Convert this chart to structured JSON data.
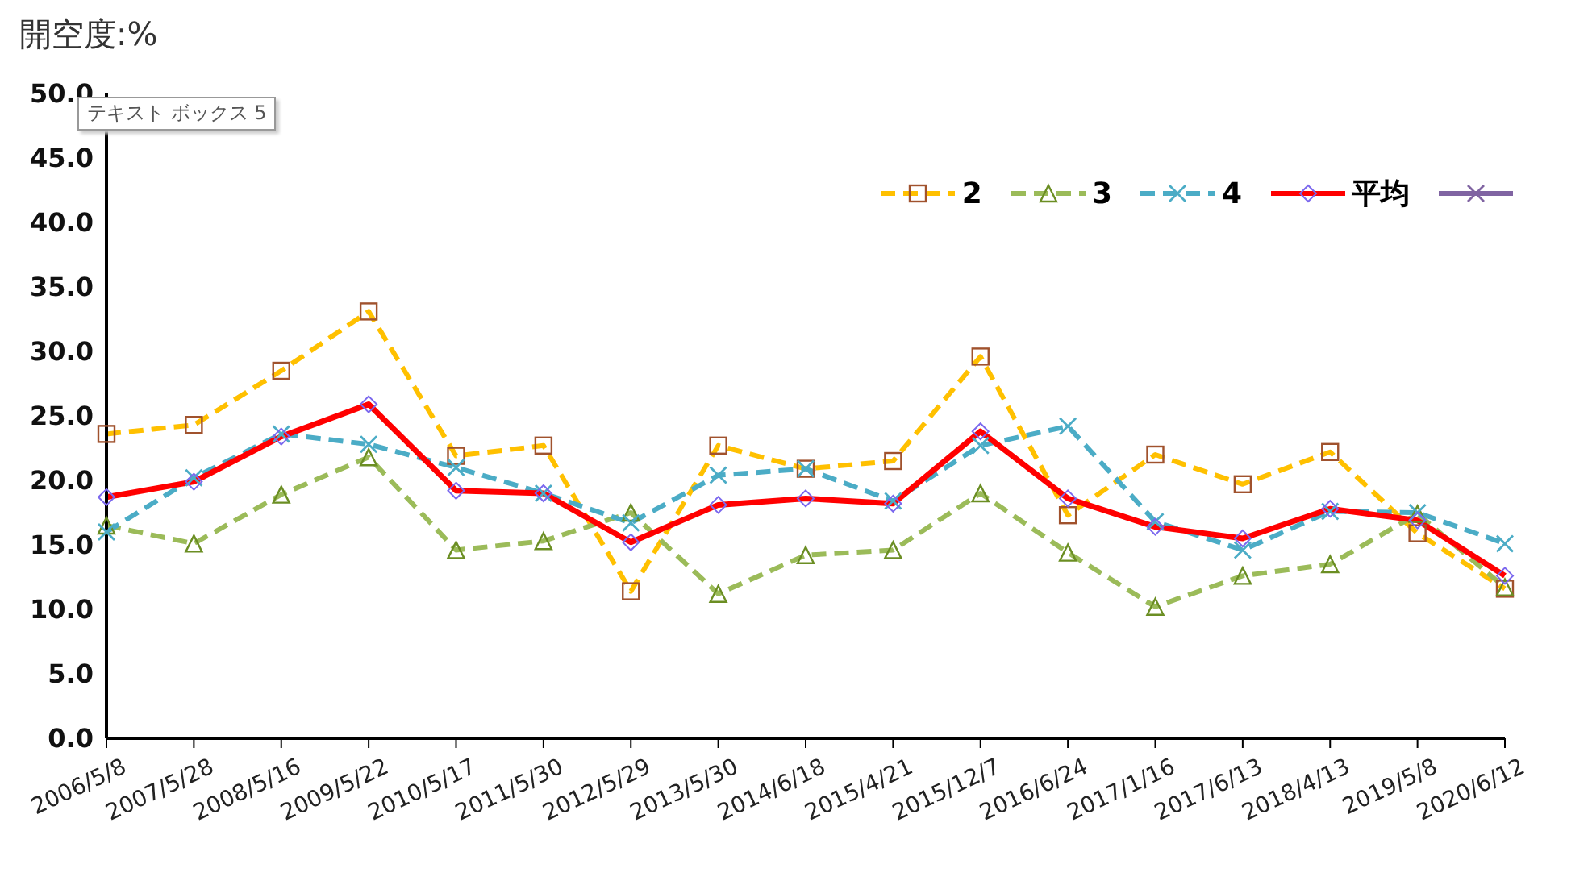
{
  "chart_data": {
    "type": "line",
    "ylabel": "開空度:%",
    "annotations": [
      "テキスト ボックス 5"
    ],
    "categories": [
      "2006/5/8",
      "2007/5/28",
      "2008/5/16",
      "2009/5/22",
      "2010/5/17",
      "2011/5/30",
      "2012/5/29",
      "2013/5/30",
      "2014/6/18",
      "2015/4/21",
      "2015/12/7",
      "2016/6/24",
      "2017/1/16",
      "2017/6/13",
      "2018/4/13",
      "2019/5/8",
      "2020/6/12"
    ],
    "series": [
      {
        "name": "2",
        "color": "#ffc000",
        "marker": "square",
        "line_style": "dashed",
        "values": [
          23.6,
          24.3,
          28.5,
          33.1,
          21.9,
          22.7,
          11.4,
          22.7,
          20.9,
          21.5,
          29.6,
          17.3,
          22.0,
          19.7,
          22.2,
          15.9,
          11.6
        ]
      },
      {
        "name": "3",
        "color": "#9bbb59",
        "marker": "triangle",
        "line_style": "dashed",
        "values": [
          16.5,
          15.1,
          18.9,
          21.8,
          14.6,
          15.3,
          17.5,
          11.2,
          14.2,
          14.6,
          19.0,
          14.4,
          10.2,
          12.6,
          13.5,
          17.4,
          11.7
        ]
      },
      {
        "name": "4",
        "color": "#4bacc6",
        "marker": "cross",
        "line_style": "dashed",
        "values": [
          16.0,
          20.2,
          23.6,
          22.8,
          21.0,
          19.0,
          16.7,
          20.4,
          20.9,
          18.4,
          22.7,
          24.2,
          16.8,
          14.6,
          17.6,
          17.5,
          15.1
        ]
      },
      {
        "name": "平均",
        "color": "#ff0000",
        "marker": "diamond",
        "line_style": "solid",
        "values": [
          18.7,
          19.9,
          23.4,
          25.9,
          19.2,
          19.0,
          15.2,
          18.1,
          18.6,
          18.2,
          23.8,
          18.6,
          16.4,
          15.5,
          17.8,
          16.9,
          12.6
        ]
      },
      {
        "color": "#8064a2",
        "marker": "cross",
        "line_style": "solid",
        "values": [
          null,
          null,
          null,
          null,
          null,
          null,
          null,
          null,
          null,
          null,
          null,
          null,
          null,
          null,
          null,
          null,
          null
        ]
      }
    ],
    "ylim": [
      0,
      50
    ],
    "yticks": [
      {
        "value": 0,
        "label": "0.0"
      },
      {
        "value": 5,
        "label": "5.0"
      },
      {
        "value": 10,
        "label": "10.0"
      },
      {
        "value": 15,
        "label": "15.0"
      },
      {
        "value": 20,
        "label": "20.0"
      },
      {
        "value": 25,
        "label": "25.0"
      },
      {
        "value": 30,
        "label": "30.0"
      },
      {
        "value": 35,
        "label": "35.0"
      },
      {
        "value": 40,
        "label": "40.0"
      },
      {
        "value": 45,
        "label": "45.0"
      },
      {
        "value": 50,
        "label": "50.0"
      }
    ],
    "legend": "top right"
  }
}
